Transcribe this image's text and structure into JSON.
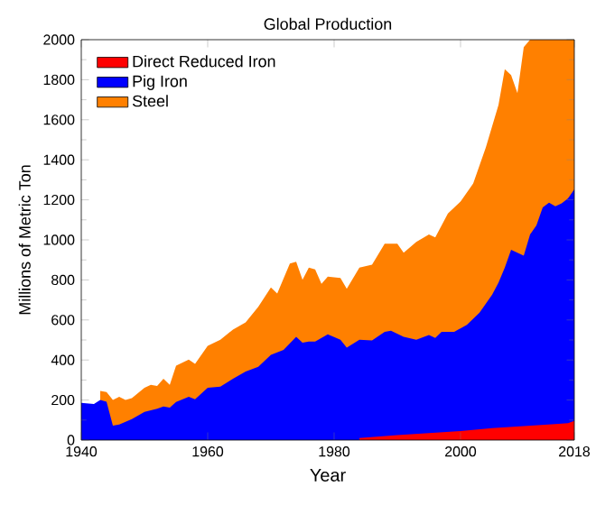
{
  "chart_data": {
    "type": "area",
    "title": "Global Production",
    "xlabel": "Year",
    "ylabel": "Millions of Metric Ton",
    "xlim": [
      1940,
      2018
    ],
    "xticks": [
      1940,
      1960,
      1980,
      2000,
      2018
    ],
    "ylim": [
      0,
      2000
    ],
    "yticks": [
      0,
      200,
      400,
      600,
      800,
      1000,
      1200,
      1400,
      1600,
      1800,
      2000
    ],
    "legend": "top left",
    "grid": false,
    "series": [
      {
        "name": "Direct Reduced Iron",
        "color": "#ff0000",
        "x": [
          1984,
          1990,
          1995,
          2000,
          2005,
          2010,
          2015,
          2017,
          2018
        ],
        "values": [
          10,
          25,
          35,
          45,
          60,
          70,
          80,
          85,
          96
        ]
      },
      {
        "name": "Pig Iron",
        "color": "#0000ff",
        "x": [
          1940,
          1942,
          1943,
          1944,
          1945,
          1946,
          1948,
          1950,
          1952,
          1953,
          1954,
          1955,
          1957,
          1958,
          1960,
          1962,
          1964,
          1966,
          1968,
          1970,
          1972,
          1974,
          1975,
          1976,
          1977,
          1979,
          1981,
          1982,
          1984,
          1986,
          1988,
          1989,
          1991,
          1993,
          1995,
          1996,
          1997,
          1999,
          2001,
          2003,
          2004,
          2005,
          2006,
          2007,
          2008,
          2010,
          2011,
          2012,
          2013,
          2014,
          2015,
          2016,
          2017,
          2018
        ],
        "values": [
          186,
          180,
          200,
          192,
          72,
          78,
          105,
          141,
          156,
          168,
          162,
          190,
          216,
          204,
          261,
          267,
          306,
          342,
          366,
          426,
          450,
          516,
          486,
          492,
          492,
          528,
          501,
          462,
          501,
          498,
          540,
          546,
          516,
          501,
          525,
          510,
          540,
          540,
          576,
          636,
          681,
          726,
          786,
          861,
          951,
          921,
          1027,
          1072,
          1162,
          1186,
          1168,
          1183,
          1207,
          1252
        ]
      },
      {
        "name": "Steel",
        "color": "#ff8000",
        "x": [
          1943,
          1944,
          1945,
          1946,
          1947,
          1948,
          1950,
          1951,
          1952,
          1953,
          1954,
          1955,
          1957,
          1958,
          1960,
          1962,
          1964,
          1966,
          1968,
          1970,
          1971,
          1973,
          1974,
          1975,
          1976,
          1977,
          1978,
          1979,
          1981,
          1982,
          1984,
          1986,
          1988,
          1990,
          1991,
          1993,
          1995,
          1996,
          1997,
          1998,
          2000,
          2002,
          2004,
          2006,
          2007,
          2008,
          2009,
          2010,
          2011,
          2012,
          2014,
          2016,
          2018
        ],
        "values": [
          246,
          240,
          201,
          216,
          201,
          210,
          261,
          276,
          270,
          306,
          276,
          372,
          402,
          381,
          471,
          501,
          552,
          588,
          666,
          762,
          732,
          882,
          891,
          801,
          861,
          852,
          780,
          816,
          810,
          756,
          861,
          876,
          981,
          981,
          936,
          990,
          1027,
          1012,
          1072,
          1132,
          1192,
          1282,
          1462,
          1673,
          1853,
          1823,
          1733,
          1963,
          2000,
          2000,
          2000,
          2000,
          2000
        ]
      }
    ]
  }
}
